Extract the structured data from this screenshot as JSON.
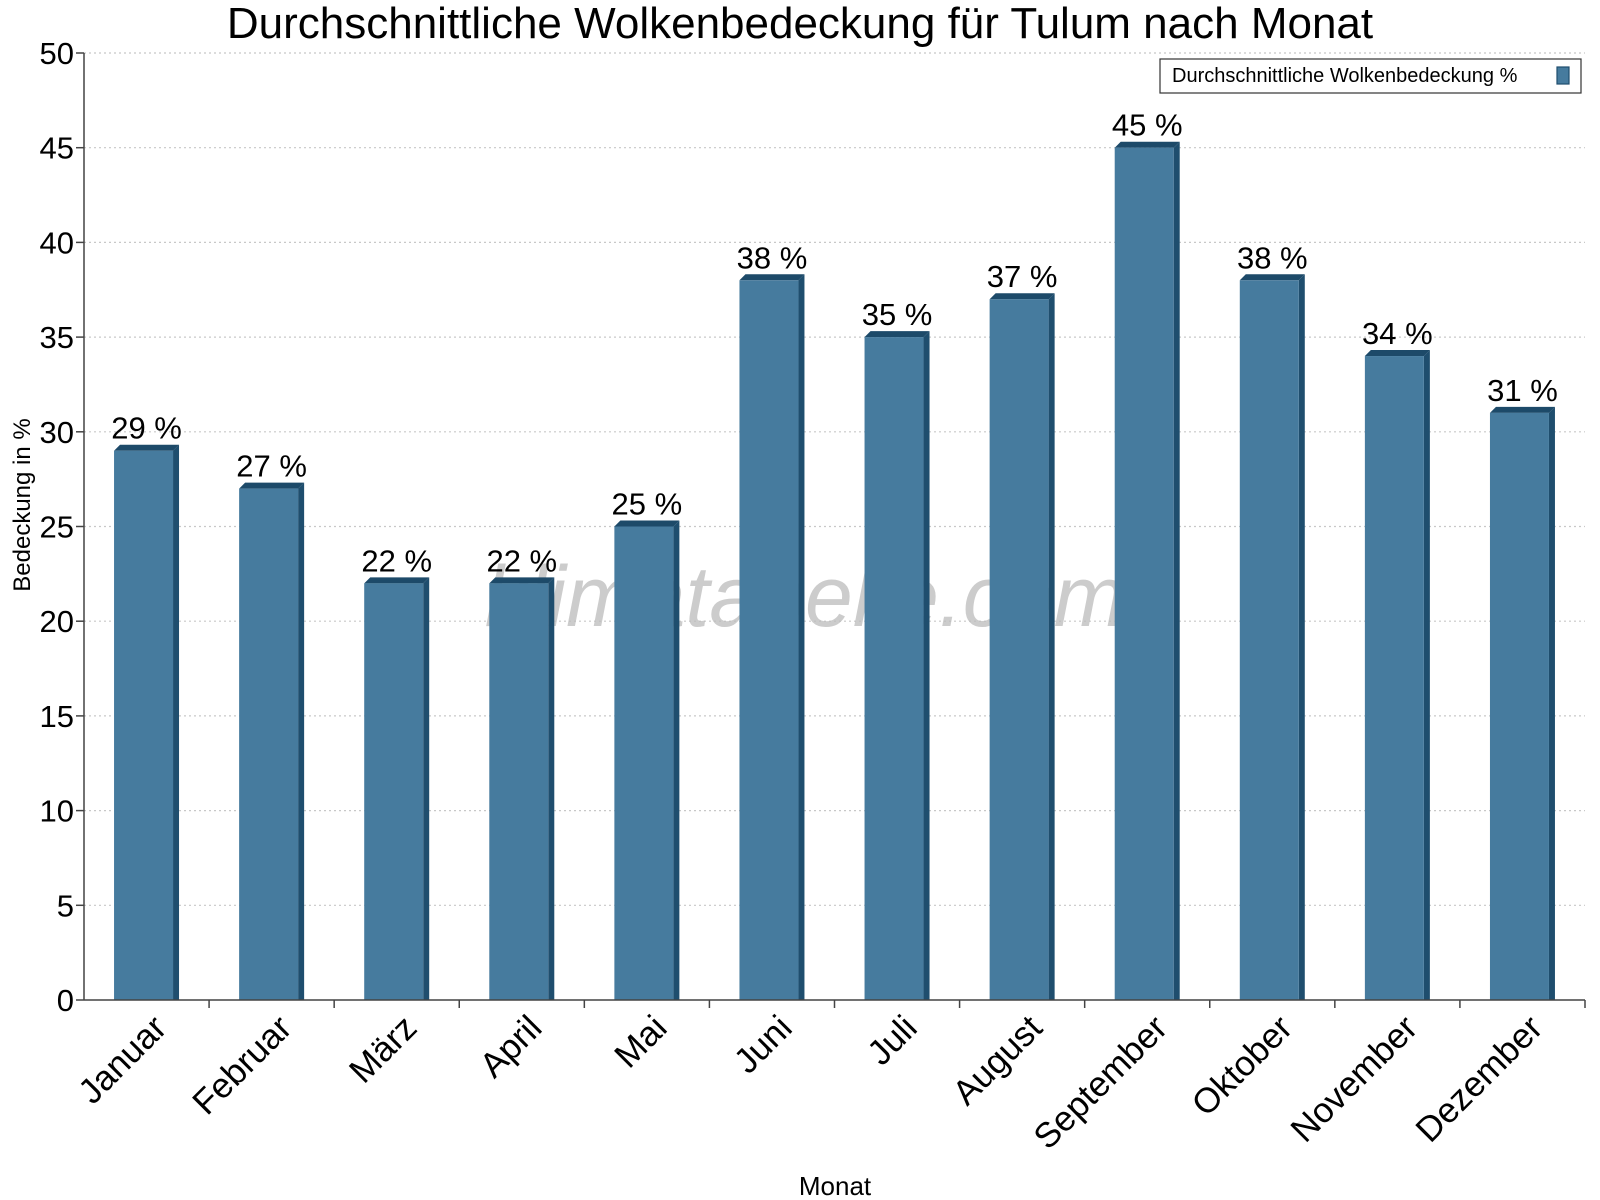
{
  "chart_data": {
    "type": "bar",
    "title": "Durchschnittliche Wolkenbedeckung für Tulum nach Monat",
    "xlabel": "Monat",
    "ylabel": "Bedeckung in %",
    "ylim": [
      0,
      50
    ],
    "ytick_step": 5,
    "grid": true,
    "legend_position": "top-right",
    "categories": [
      "Januar",
      "Februar",
      "März",
      "April",
      "Mai",
      "Juni",
      "Juli",
      "August",
      "September",
      "Oktober",
      "November",
      "Dezember"
    ],
    "series": [
      {
        "name": "Durchschnittliche Wolkenbedeckung %",
        "values": [
          29,
          27,
          22,
          22,
          25,
          38,
          35,
          37,
          45,
          38,
          34,
          31
        ],
        "data_labels": [
          "29 %",
          "27 %",
          "22 %",
          "22 %",
          "25 %",
          "38 %",
          "35 %",
          "37 %",
          "45 %",
          "38 %",
          "34 %",
          "31 %"
        ]
      }
    ],
    "watermark": "klimatabelle.com"
  },
  "colors": {
    "bar_front": "#467b9e",
    "bar_side": "#1f4e6e",
    "bar_top": "#1d4a69",
    "grid": "#c8c8c8",
    "axis": "#444444",
    "text": "#000000",
    "axis_title": "#555555",
    "watermark": "#bbbbbb"
  }
}
